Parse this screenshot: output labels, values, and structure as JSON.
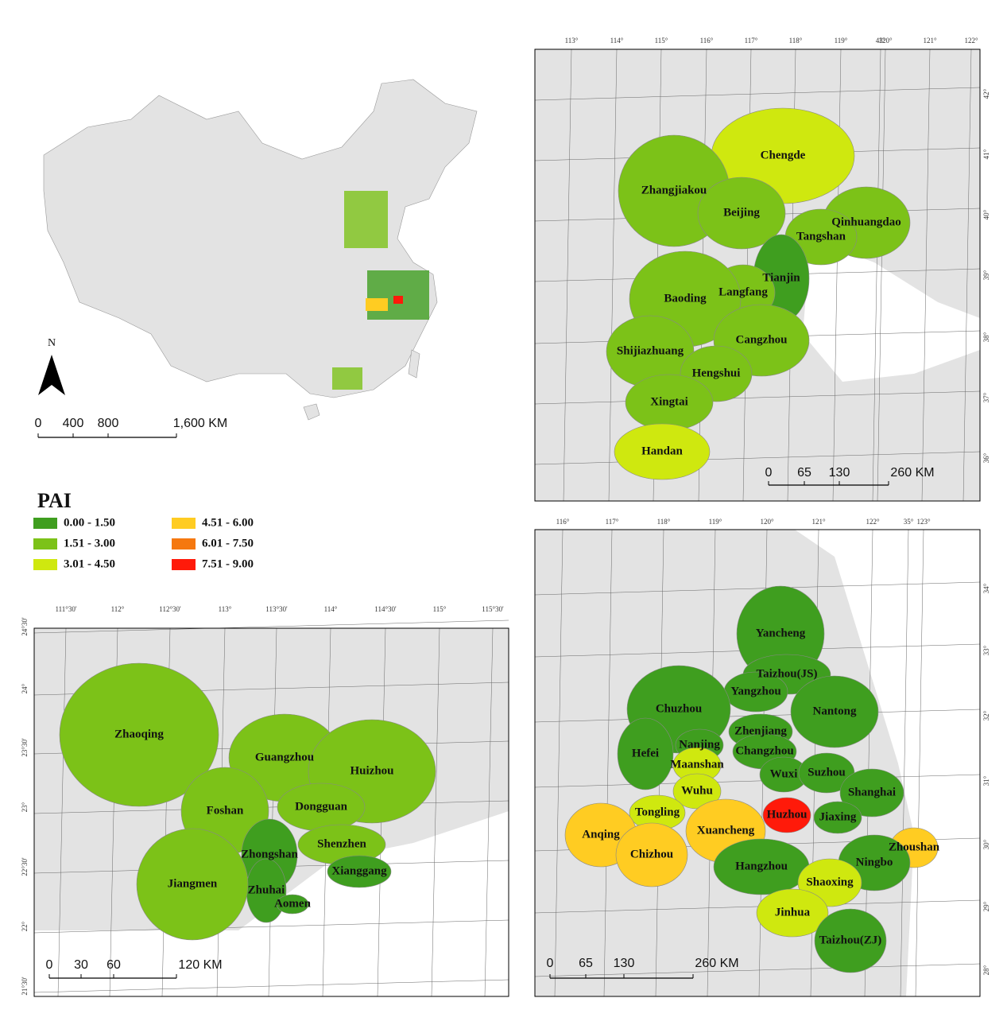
{
  "overview": {
    "north": "N",
    "scale": [
      "0",
      "400",
      "800",
      "1,600 KM"
    ]
  },
  "legend": {
    "title": "PAI",
    "items": [
      {
        "label": "0.00 - 1.50",
        "color": "#3f9e1f"
      },
      {
        "label": "1.51 - 3.00",
        "color": "#7cc218"
      },
      {
        "label": "3.01 - 4.50",
        "color": "#cfe80f"
      },
      {
        "label": "4.51 - 6.00",
        "color": "#ffcc22"
      },
      {
        "label": "6.01 - 7.50",
        "color": "#f5780f"
      },
      {
        "label": "7.51 - 9.00",
        "color": "#ff1a0a"
      }
    ]
  },
  "panels": [
    {
      "name": "jjj",
      "top": [
        "113°",
        "114°",
        "115°",
        "116°",
        "117°",
        "118°",
        "119°",
        "43°",
        "120°",
        "121°",
        "122°"
      ],
      "side": [
        "42°",
        "41°",
        "40°",
        "39°",
        "38°",
        "37°",
        "36°"
      ],
      "scale": [
        "0",
        "65",
        "130",
        "260 KM"
      ],
      "cities": [
        {
          "name": "Chengde",
          "color": "#cfe80f"
        },
        {
          "name": "Zhangjiakou",
          "color": "#7cc218"
        },
        {
          "name": "Beijing",
          "color": "#7cc218"
        },
        {
          "name": "Qinhuangdao",
          "color": "#7cc218"
        },
        {
          "name": "Tangshan",
          "color": "#7cc218"
        },
        {
          "name": "Tianjin",
          "color": "#3f9e1f"
        },
        {
          "name": "Langfang",
          "color": "#7cc218"
        },
        {
          "name": "Baoding",
          "color": "#7cc218"
        },
        {
          "name": "Cangzhou",
          "color": "#7cc218"
        },
        {
          "name": "Shijiazhuang",
          "color": "#7cc218"
        },
        {
          "name": "Hengshui",
          "color": "#7cc218"
        },
        {
          "name": "Xingtai",
          "color": "#7cc218"
        },
        {
          "name": "Handan",
          "color": "#cfe80f"
        }
      ]
    },
    {
      "name": "yrd",
      "top": [
        "116°",
        "117°",
        "118°",
        "119°",
        "120°",
        "121°",
        "122°",
        "35°",
        "123°"
      ],
      "side": [
        "34°",
        "33°",
        "32°",
        "31°",
        "30°",
        "29°",
        "28°"
      ],
      "scale": [
        "0",
        "65",
        "130",
        "260 KM"
      ],
      "cities": [
        {
          "name": "Yancheng",
          "color": "#3f9e1f"
        },
        {
          "name": "Taizhou(JS)",
          "color": "#3f9e1f"
        },
        {
          "name": "Yangzhou",
          "color": "#3f9e1f"
        },
        {
          "name": "Chuzhou",
          "color": "#3f9e1f"
        },
        {
          "name": "Nantong",
          "color": "#3f9e1f"
        },
        {
          "name": "Zhenjiang",
          "color": "#3f9e1f"
        },
        {
          "name": "Nanjing",
          "color": "#3f9e1f"
        },
        {
          "name": "Changzhou",
          "color": "#3f9e1f"
        },
        {
          "name": "Hefei",
          "color": "#3f9e1f"
        },
        {
          "name": "Maanshan",
          "color": "#cfe80f"
        },
        {
          "name": "Wuxi",
          "color": "#3f9e1f"
        },
        {
          "name": "Suzhou",
          "color": "#3f9e1f"
        },
        {
          "name": "Shanghai",
          "color": "#3f9e1f"
        },
        {
          "name": "Wuhu",
          "color": "#cfe80f"
        },
        {
          "name": "Tongling",
          "color": "#cfe80f"
        },
        {
          "name": "Huzhou",
          "color": "#ff1a0a"
        },
        {
          "name": "Jiaxing",
          "color": "#3f9e1f"
        },
        {
          "name": "Xuancheng",
          "color": "#ffcc22"
        },
        {
          "name": "Anqing",
          "color": "#ffcc22"
        },
        {
          "name": "Chizhou",
          "color": "#ffcc22"
        },
        {
          "name": "Zhoushan",
          "color": "#ffcc22"
        },
        {
          "name": "Hangzhou",
          "color": "#3f9e1f"
        },
        {
          "name": "Ningbo",
          "color": "#3f9e1f"
        },
        {
          "name": "Shaoxing",
          "color": "#cfe80f"
        },
        {
          "name": "Jinhua",
          "color": "#cfe80f"
        },
        {
          "name": "Taizhou(ZJ)",
          "color": "#3f9e1f"
        }
      ]
    },
    {
      "name": "prd",
      "top": [
        "111°30'",
        "112°",
        "112°30'",
        "113°",
        "113°30'",
        "114°",
        "114°30'",
        "115°",
        "115°30'"
      ],
      "side": [
        "24°30'",
        "24°",
        "23°30'",
        "23°",
        "22°30'",
        "22°",
        "21°30'"
      ],
      "scale": [
        "0",
        "30",
        "60",
        "120 KM"
      ],
      "cities": [
        {
          "name": "Zhaoqing",
          "color": "#7cc218"
        },
        {
          "name": "Guangzhou",
          "color": "#7cc218"
        },
        {
          "name": "Huizhou",
          "color": "#7cc218"
        },
        {
          "name": "Foshan",
          "color": "#7cc218"
        },
        {
          "name": "Dongguan",
          "color": "#7cc218"
        },
        {
          "name": "Shenzhen",
          "color": "#7cc218"
        },
        {
          "name": "Zhongshan",
          "color": "#3f9e1f"
        },
        {
          "name": "Xianggang",
          "color": "#3f9e1f"
        },
        {
          "name": "Zhuhai",
          "color": "#3f9e1f"
        },
        {
          "name": "Jiangmen",
          "color": "#7cc218"
        },
        {
          "name": "Aomen",
          "color": "#3f9e1f"
        }
      ]
    }
  ]
}
